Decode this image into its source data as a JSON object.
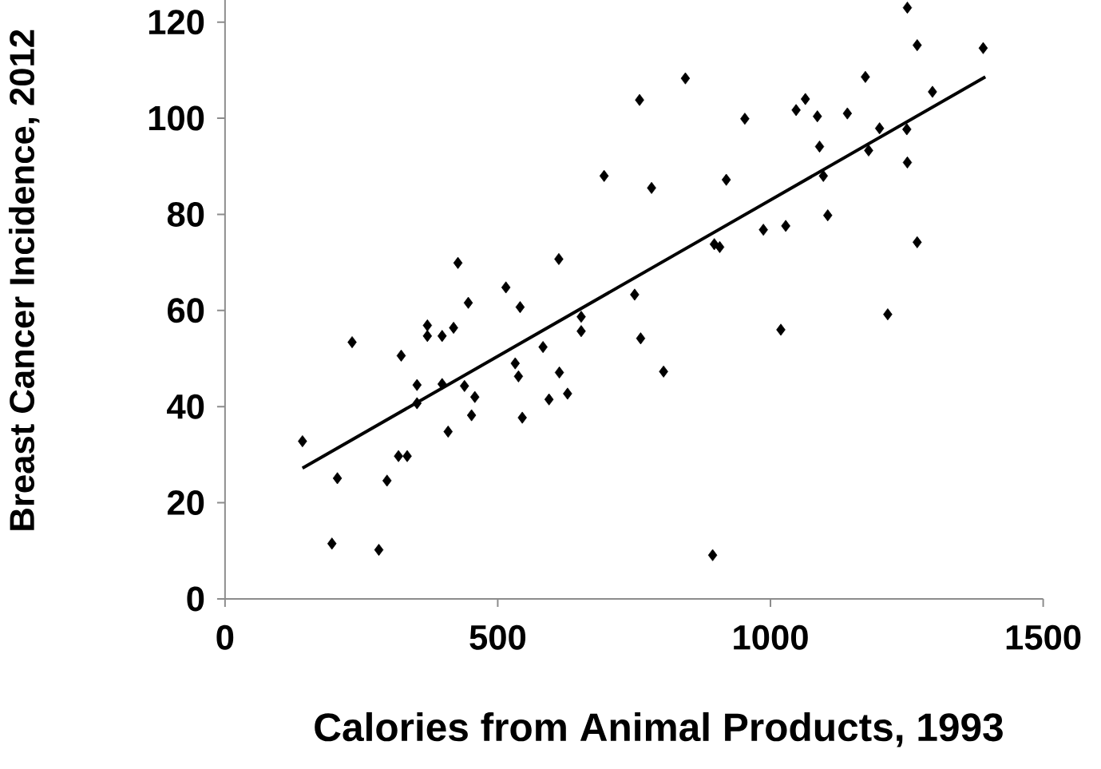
{
  "chart_data": {
    "type": "scatter",
    "xlabel": "Calories from Animal Products, 1993",
    "ylabel": "Breast Cancer Incidence, 2012",
    "xlim": [
      0,
      1500
    ],
    "ylim": [
      0,
      125
    ],
    "xticks": [
      0,
      500,
      1000,
      1500
    ],
    "yticks": [
      0,
      20,
      40,
      60,
      80,
      100,
      120
    ],
    "series": [
      {
        "type": "scatter",
        "color": "#000000",
        "marker": "diamond",
        "x": [
          142,
          206,
          196,
          233,
          282,
          297,
          323,
          318,
          334,
          352,
          352,
          371,
          371,
          398,
          398,
          409,
          419,
          427,
          446,
          439,
          458,
          452,
          515,
          541,
          532,
          538,
          545,
          583,
          594,
          612,
          613,
          628,
          653,
          653,
          695,
          751,
          760,
          762,
          782,
          804,
          844,
          894,
          897,
          907,
          919,
          953,
          987,
          1019,
          1028,
          1047,
          1064,
          1086,
          1090,
          1097,
          1105,
          1141,
          1174,
          1180,
          1200,
          1215,
          1250,
          1251,
          1251,
          1269,
          1269,
          1297,
          1390
        ],
        "values": [
          32.8,
          25.1,
          11.5,
          53.4,
          10.2,
          24.6,
          50.6,
          29.7,
          29.7,
          44.5,
          40.7,
          56.9,
          54.7,
          54.7,
          44.7,
          34.8,
          56.4,
          69.9,
          61.6,
          44.3,
          42.0,
          38.2,
          64.8,
          60.7,
          49.0,
          46.3,
          37.7,
          52.4,
          41.5,
          70.7,
          47.1,
          42.7,
          58.7,
          55.7,
          88.0,
          63.3,
          103.8,
          54.2,
          85.5,
          47.3,
          108.3,
          9.1,
          73.8,
          73.2,
          87.2,
          99.9,
          76.8,
          56.0,
          77.6,
          101.7,
          104.0,
          100.4,
          94.1,
          88.0,
          79.8,
          101.0,
          108.6,
          93.3,
          97.9,
          59.2,
          97.7,
          90.8,
          123.0,
          115.2,
          74.2,
          105.5,
          114.6
        ]
      },
      {
        "type": "line",
        "color": "#000000",
        "marker": "none",
        "x": [
          142,
          1394
        ],
        "values": [
          27.2,
          108.6
        ]
      }
    ]
  }
}
